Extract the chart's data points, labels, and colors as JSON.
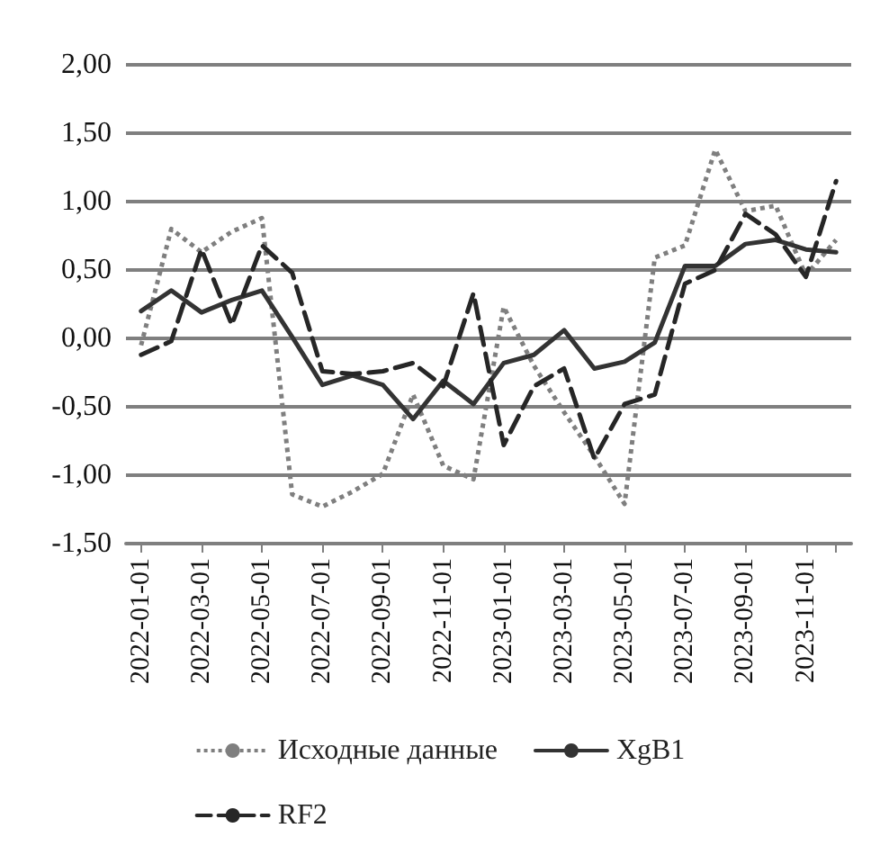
{
  "chart_data": {
    "type": "line",
    "categories": [
      "2022-01-01",
      null,
      "2022-03-01",
      null,
      "2022-05-01",
      null,
      "2022-07-01",
      null,
      "2022-09-01",
      null,
      "2022-11-01",
      null,
      "2023-01-01",
      null,
      "2023-03-01",
      null,
      "2023-05-01",
      null,
      "2023-07-01",
      null,
      "2023-09-01",
      null,
      "2023-11-01",
      null
    ],
    "series": [
      {
        "name": "Исходные данные",
        "color": "#7f7f7f",
        "line_style": "dotted",
        "values": [
          -0.05,
          0.8,
          0.63,
          0.78,
          0.88,
          -1.14,
          -1.23,
          -1.12,
          -0.99,
          -0.41,
          -0.93,
          -1.03,
          0.23,
          -0.2,
          -0.54,
          -0.86,
          -1.21,
          0.59,
          0.68,
          1.38,
          0.93,
          0.97,
          0.46,
          0.72
        ]
      },
      {
        "name": "XgB1",
        "color": "#333333",
        "line_style": "solid",
        "values": [
          0.2,
          0.35,
          0.19,
          0.28,
          0.35,
          0.01,
          -0.34,
          -0.27,
          -0.34,
          -0.59,
          -0.31,
          -0.48,
          -0.18,
          -0.12,
          0.06,
          -0.22,
          -0.17,
          -0.03,
          0.53,
          0.53,
          0.69,
          0.72,
          0.65,
          0.63
        ]
      },
      {
        "name": "RF2",
        "color": "#262626",
        "line_style": "dashed",
        "values": [
          -0.12,
          -0.02,
          0.65,
          0.1,
          0.68,
          0.48,
          -0.24,
          -0.26,
          -0.24,
          -0.18,
          -0.35,
          0.33,
          -0.78,
          -0.35,
          -0.22,
          -0.88,
          -0.48,
          -0.41,
          0.4,
          0.5,
          0.91,
          0.76,
          0.45,
          1.15
        ]
      }
    ],
    "ylim": [
      -1.5,
      2.0
    ],
    "yticks": [
      {
        "value": -1.5,
        "label": "-1,50"
      },
      {
        "value": -1.0,
        "label": "-1,00"
      },
      {
        "value": -0.5,
        "label": "-0,50"
      },
      {
        "value": 0,
        "label": "0,00"
      },
      {
        "value": 0.5,
        "label": "0,50"
      },
      {
        "value": 1.0,
        "label": "1,00"
      },
      {
        "value": 1.5,
        "label": "1,50"
      },
      {
        "value": 2.0,
        "label": "2,00"
      }
    ],
    "grid": "y",
    "legend": "bottom",
    "marker": "none"
  }
}
